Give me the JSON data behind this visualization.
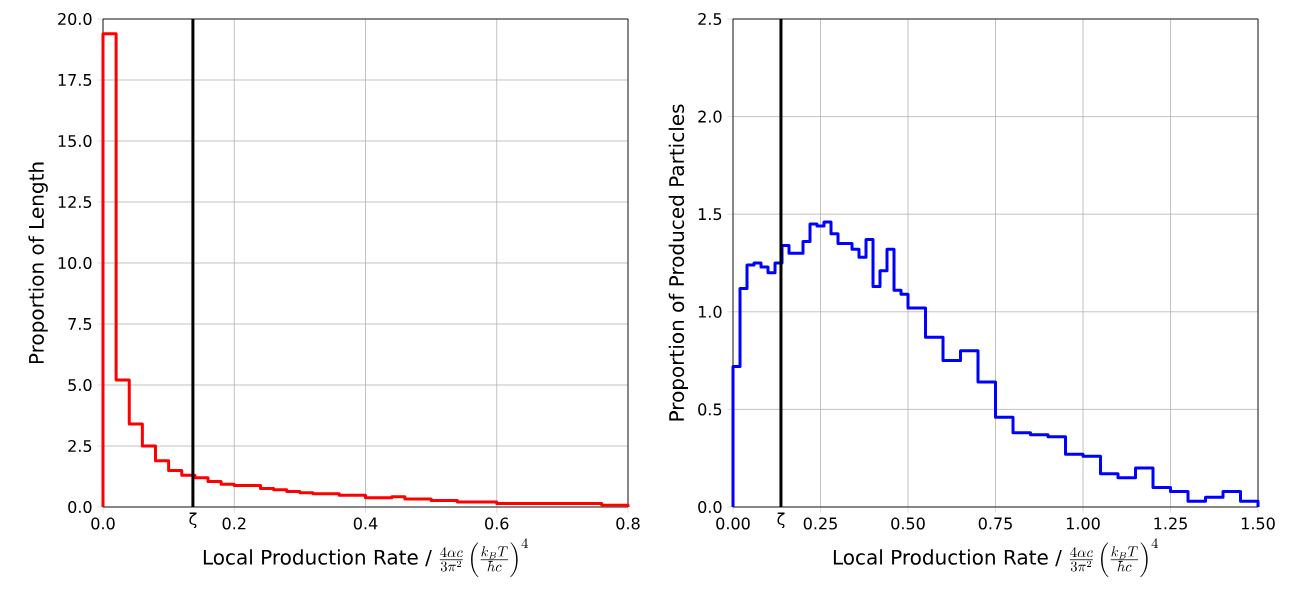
{
  "chart_data": [
    {
      "type": "histogram",
      "ylabel": "Proportion of Length",
      "xlabel": "\\text{Local Production Rate / }\\frac{4\\alpha c}{3\\pi^2}\\left(\\frac{k_BT}{\\hbar c}\\right)^4",
      "color": "#ff0000",
      "bins": [
        0,
        0.02,
        0.04,
        0.06,
        0.08,
        0.1,
        0.12,
        0.14,
        0.16,
        0.18,
        0.2,
        0.22,
        0.24,
        0.26,
        0.28,
        0.3,
        0.32,
        0.34,
        0.36,
        0.38,
        0.4,
        0.42,
        0.44,
        0.46,
        0.48,
        0.5,
        0.52,
        0.54,
        0.56,
        0.58,
        0.6,
        0.62,
        0.64,
        0.66,
        0.68,
        0.7,
        0.72,
        0.74,
        0.76,
        0.78,
        0.8
      ],
      "values": [
        19.4,
        5.2,
        3.4,
        2.5,
        1.9,
        1.5,
        1.3,
        1.2,
        1.05,
        0.93,
        0.88,
        0.88,
        0.76,
        0.71,
        0.64,
        0.58,
        0.54,
        0.54,
        0.48,
        0.48,
        0.38,
        0.38,
        0.42,
        0.33,
        0.33,
        0.27,
        0.27,
        0.2,
        0.2,
        0.2,
        0.14,
        0.14,
        0.14,
        0.14,
        0.14,
        0.14,
        0.14,
        0.14,
        0.07,
        0.07
      ],
      "xlim": [
        0,
        0.8
      ],
      "ylim": [
        0,
        20
      ],
      "xticks": [
        {
          "value": 0,
          "label": "0.0"
        },
        0.2,
        0.4,
        0.6,
        {
          "value": 0.8,
          "label": "0.8"
        }
      ],
      "yticks": [
        {
          "value": 0,
          "label": "0.0"
        },
        2.5,
        {
          "value": 5,
          "label": "5.0"
        },
        7.5,
        {
          "value": 10,
          "label": "10.0"
        },
        12.5,
        {
          "value": 15,
          "label": "15.0"
        },
        17.5,
        {
          "value": 20,
          "label": "20.0"
        }
      ],
      "grid": true,
      "ref_lines": [
        {
          "axis": "x",
          "value": 0.137,
          "label": "ζ",
          "color": "#000000"
        }
      ]
    },
    {
      "type": "histogram",
      "ylabel": "Proportion of Produced Particles",
      "xlabel": "\\text{Local Production Rate / }\\frac{4\\alpha c}{3\\pi^2}\\left(\\frac{k_BT}{\\hbar c}\\right)^4",
      "color": "#0000ff",
      "bins": [
        0,
        0.02,
        0.04,
        0.06,
        0.08,
        0.1,
        0.12,
        0.14,
        0.16,
        0.18,
        0.2,
        0.22,
        0.24,
        0.26,
        0.28,
        0.3,
        0.32,
        0.34,
        0.36,
        0.38,
        0.4,
        0.42,
        0.44,
        0.46,
        0.48,
        0.5,
        0.55,
        0.6,
        0.65,
        0.7,
        0.75,
        0.8,
        0.85,
        0.9,
        0.95,
        1.0,
        1.05,
        1.1,
        1.15,
        1.2,
        1.25,
        1.3,
        1.35,
        1.4,
        1.45,
        1.5
      ],
      "values": [
        0.72,
        1.12,
        1.24,
        1.25,
        1.23,
        1.2,
        1.25,
        1.34,
        1.3,
        1.3,
        1.36,
        1.45,
        1.44,
        1.46,
        1.4,
        1.35,
        1.35,
        1.32,
        1.28,
        1.37,
        1.13,
        1.21,
        1.32,
        1.11,
        1.09,
        1.02,
        0.87,
        0.75,
        0.8,
        0.64,
        0.46,
        0.38,
        0.37,
        0.36,
        0.27,
        0.26,
        0.17,
        0.15,
        0.2,
        0.1,
        0.08,
        0.03,
        0.05,
        0.08,
        0.03
      ],
      "xlim": [
        0,
        1.5
      ],
      "ylim": [
        0,
        2.5
      ],
      "xticks": [
        {
          "value": 0,
          "label": "0.00"
        },
        0.25,
        {
          "value": 0.5,
          "label": "0.50"
        },
        0.75,
        {
          "value": 1,
          "label": "1.00"
        },
        1.25,
        {
          "value": 1.5,
          "label": "1.50"
        }
      ],
      "yticks": [
        {
          "value": 0,
          "label": "0.0"
        },
        0.5,
        {
          "value": 1,
          "label": "1.0"
        },
        1.5,
        {
          "value": 2,
          "label": "2.0"
        },
        2.5
      ],
      "grid": true,
      "ref_lines": [
        {
          "axis": "x",
          "value": 0.137,
          "label": "ζ",
          "color": "#000000"
        }
      ]
    }
  ]
}
